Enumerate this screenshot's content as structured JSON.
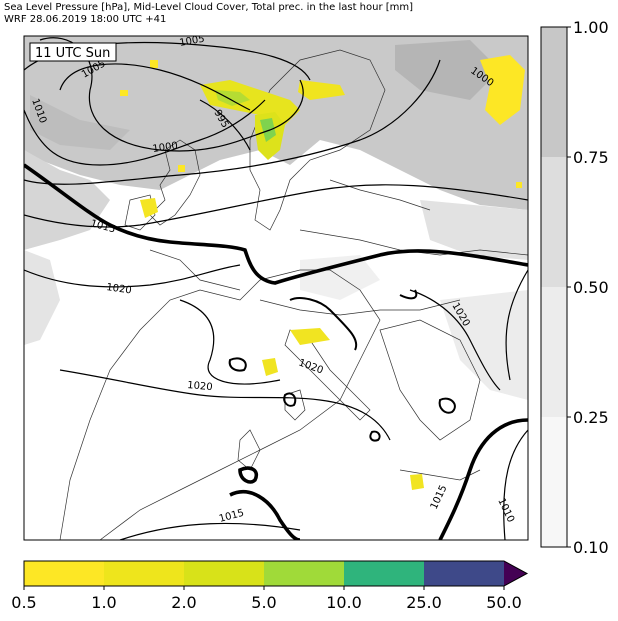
{
  "header": {
    "line1": "Sea Level Pressure [hPa], Mid-Level Cloud Cover, Total prec. in the last hour [mm]",
    "line2": "WRF 28.06.2019 18:00 UTC +41"
  },
  "map": {
    "time_badge": "11 UTC Sun",
    "isobar_labels": [
      "1005",
      "1005",
      "1010",
      "1000",
      "995",
      "1000",
      "1015",
      "1020",
      "1020",
      "1020",
      "1020",
      "1015",
      "1010",
      "1015"
    ]
  },
  "cloud_colorbar": {
    "ticks": [
      "1.00",
      "0.75",
      "0.50",
      "0.25",
      "0.10"
    ],
    "colors": [
      "#c7c7c7",
      "#dddddd",
      "#ececec",
      "#f7f7f7"
    ]
  },
  "precip_colorbar": {
    "ticks": [
      "0.5",
      "1.0",
      "2.0",
      "5.0",
      "10.0",
      "25.0",
      "50.0"
    ],
    "colors": [
      "#fde725",
      "#eee51c",
      "#d8e219",
      "#a0da39",
      "#2fb47c",
      "#3e4989",
      "#440154"
    ]
  }
}
